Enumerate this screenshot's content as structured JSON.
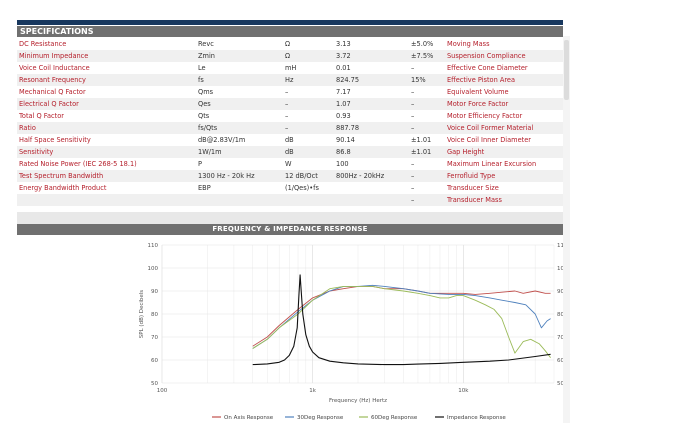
{
  "specifications": {
    "title": "SPECIFICATIONS",
    "rows": [
      [
        "DC Resistance",
        "Revc",
        "Ω",
        "3.13",
        "±5.0%",
        "Moving Mass"
      ],
      [
        "Minimum Impedance",
        "Zmin",
        "Ω",
        "3.72",
        "±7.5%",
        "Suspension Compliance"
      ],
      [
        "Voice Coil Inductance",
        "Le",
        "mH",
        "0.01",
        "–",
        "Effective Cone Diameter"
      ],
      [
        "Resonant Frequency",
        "fs",
        "Hz",
        "824.75",
        "15%",
        "Effective Piston Area"
      ],
      [
        "Mechanical Q Factor",
        "Qms",
        "–",
        "7.17",
        "–",
        "Equivalent Volume"
      ],
      [
        "Electrical Q Factor",
        "Qes",
        "–",
        "1.07",
        "–",
        "Motor Force Factor"
      ],
      [
        "Total Q Factor",
        "Qts",
        "–",
        "0.93",
        "–",
        "Motor Efficiency Factor"
      ],
      [
        "Ratio",
        "fs/Qts",
        "–",
        "887.78",
        "–",
        "Voice Coil Former Material"
      ],
      [
        "Half Space Sensitivity",
        "dB@2.83V/1m",
        "dB",
        "90.14",
        "±1.01",
        "Voice Coil Inner Diameter"
      ],
      [
        "Sensitivity",
        "1W/1m",
        "dB",
        "86.8",
        "±1.01",
        "Gap Height"
      ],
      [
        "Rated Noise Power (IEC 268-5 18.1)",
        "P",
        "W",
        "100",
        "–",
        "Maximum Linear Excursion"
      ],
      [
        "Test Spectrum Bandwidth",
        "1300 Hz - 20k Hz",
        "12 dB/Oct",
        "800Hz - 20kHz",
        "–",
        "Ferrofluid Type"
      ],
      [
        "Energy Bandwidth Product",
        "EBP",
        "(1/Qes)•fs",
        "",
        "–",
        "Transducer Size"
      ],
      [
        "",
        "",
        "",
        "",
        "–",
        "Transducer Mass"
      ]
    ]
  },
  "response": {
    "title": "FREQUENCY & IMPEDANCE RESPONSE"
  },
  "chart_data": {
    "type": "line",
    "xlabel": "Frequency (Hz) Hertz",
    "ylabel": "SPL (dB) Decibels",
    "x_scale": "log",
    "xlim": [
      100,
      40000
    ],
    "ylim": [
      50,
      110
    ],
    "x_ticks": [
      {
        "value": 100,
        "label": "100"
      },
      {
        "value": 1000,
        "label": "1k"
      },
      {
        "value": 10000,
        "label": "10k"
      }
    ],
    "y_ticks": [
      50,
      60,
      70,
      80,
      90,
      100,
      110
    ],
    "grid": true,
    "legend": "bottom",
    "series": [
      {
        "name": "On Axis Response",
        "color": "#c0504d",
        "x": [
          400,
          500,
          600,
          800,
          1000,
          1300,
          1600,
          2000,
          2500,
          3000,
          4000,
          5000,
          6000,
          7000,
          8000,
          10000,
          12000,
          15000,
          18000,
          22000,
          25000,
          30000,
          35000,
          38000
        ],
        "y": [
          66,
          70,
          75,
          82,
          87,
          90,
          91,
          92,
          92,
          91,
          91,
          90,
          89,
          89,
          89,
          89,
          88.5,
          89,
          89.5,
          90,
          89,
          90,
          89,
          89
        ]
      },
      {
        "name": "30Deg Response",
        "color": "#4f81bd",
        "x": [
          400,
          500,
          600,
          800,
          1000,
          1300,
          1600,
          2000,
          2500,
          3000,
          4000,
          5000,
          6000,
          8000,
          10000,
          12000,
          15000,
          18000,
          22000,
          26000,
          30000,
          33000,
          36000,
          38000
        ],
        "y": [
          65,
          69,
          74,
          81,
          86,
          90,
          92,
          92,
          92.5,
          92,
          91,
          90,
          89,
          88.5,
          88.5,
          88,
          87,
          86,
          85,
          84,
          80,
          74,
          77,
          78
        ]
      },
      {
        "name": "60Deg Response",
        "color": "#9bbb59",
        "x": [
          400,
          500,
          600,
          800,
          1000,
          1300,
          1600,
          2000,
          2500,
          3000,
          4000,
          5000,
          6000,
          7000,
          8000,
          9000,
          10000,
          12000,
          14000,
          16000,
          18000,
          20000,
          22000,
          25000,
          28000,
          32000,
          35000,
          38000
        ],
        "y": [
          65,
          69,
          74,
          80,
          86,
          91,
          92,
          92,
          92,
          91,
          90,
          89,
          88,
          87,
          87,
          88,
          88,
          86,
          84,
          82,
          78,
          70,
          63,
          68,
          69,
          67,
          64,
          61
        ]
      },
      {
        "name": "Impedance Response",
        "color": "#111111",
        "x": [
          400,
          500,
          600,
          650,
          700,
          750,
          790,
          810,
          825,
          840,
          860,
          900,
          950,
          1000,
          1100,
          1300,
          1600,
          2000,
          3000,
          4000,
          5000,
          7000,
          10000,
          15000,
          20000,
          30000,
          38000
        ],
        "y": [
          58,
          58.3,
          59,
          60,
          62,
          66,
          74,
          88,
          97,
          90,
          80,
          71,
          66,
          63.5,
          61,
          59.5,
          58.8,
          58.3,
          58,
          58,
          58.2,
          58.5,
          59,
          59.5,
          60,
          61.5,
          62.5
        ]
      }
    ]
  }
}
